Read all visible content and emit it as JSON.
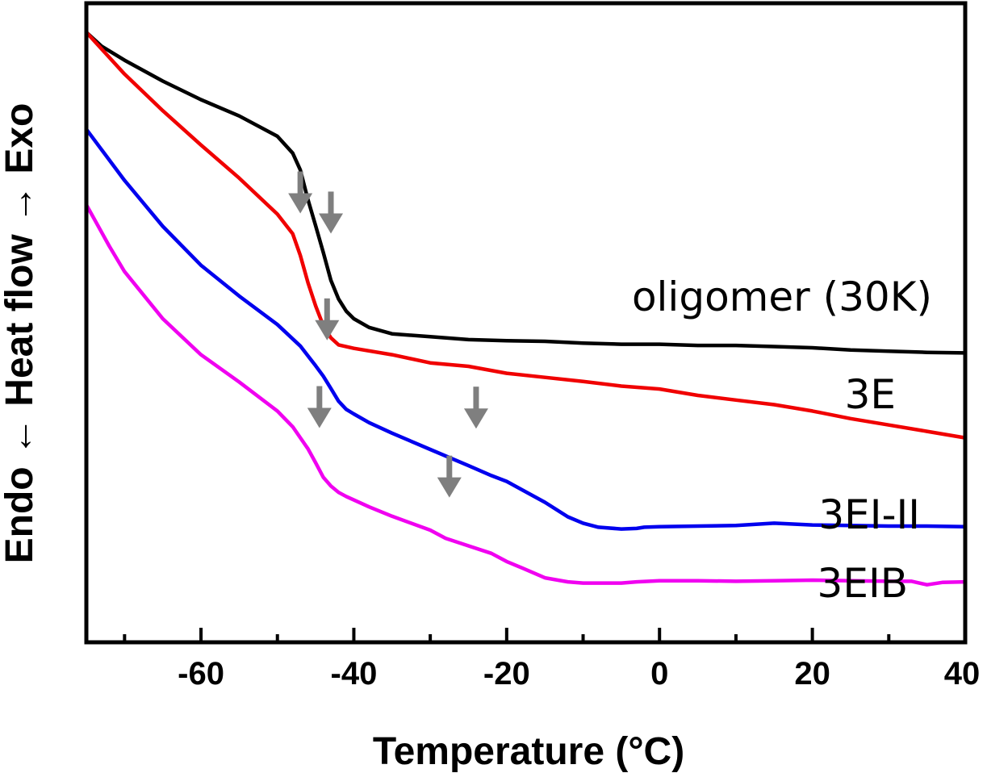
{
  "chart_data": {
    "type": "line",
    "xlabel": "Temperature (°C)",
    "ylabel": "Endo ← Heat flow → Exo",
    "xlim": [
      -75,
      40
    ],
    "ylim": [
      0,
      100
    ],
    "xticks": [
      -60,
      -40,
      -20,
      0,
      20,
      40
    ],
    "grid": false,
    "legend": "none",
    "series": [
      {
        "name": "oligomer (30K)",
        "color": "#000000",
        "x": [
          -75,
          -73,
          -70,
          -65,
          -60,
          -55,
          -50,
          -48,
          -47,
          -46,
          -45,
          -44,
          -43,
          -42,
          -41,
          -40,
          -38,
          -35,
          -30,
          -25,
          -20,
          -15,
          -10,
          -5,
          0,
          5,
          10,
          15,
          20,
          25,
          30,
          35,
          40
        ],
        "y": [
          100,
          97.6,
          95.2,
          91.6,
          88.4,
          85.6,
          82.1,
          79.2,
          76.3,
          71.2,
          66.7,
          62.1,
          57.3,
          54.1,
          52.0,
          50.7,
          49.2,
          48.1,
          47.6,
          47.1,
          46.9,
          46.8,
          46.5,
          46.3,
          46.3,
          46.1,
          46.1,
          45.9,
          45.7,
          45.3,
          45.1,
          44.9,
          44.8
        ]
      },
      {
        "name": "3E",
        "color": "#f00000",
        "x": [
          -75,
          -70,
          -65,
          -60,
          -55,
          -50,
          -48,
          -47,
          -46,
          -45,
          -44,
          -43,
          -42,
          -40,
          -35,
          -30,
          -25,
          -20,
          -15,
          -10,
          -5,
          0,
          5,
          10,
          15,
          20,
          25,
          30,
          35,
          40
        ],
        "y": [
          100,
          92.8,
          86.5,
          80.6,
          74.9,
          68.7,
          65.3,
          61.6,
          56.9,
          52.9,
          49.5,
          47.4,
          46.2,
          45.6,
          44.5,
          43.1,
          42.5,
          41.3,
          40.6,
          39.9,
          39.1,
          38.6,
          37.5,
          36.7,
          35.9,
          34.8,
          33.5,
          32.4,
          31.3,
          30.2
        ]
      },
      {
        "name": "3EI-II",
        "color": "#0000ee",
        "x": [
          -75,
          -70,
          -65,
          -60,
          -55,
          -50,
          -47,
          -45,
          -44,
          -43,
          -42,
          -41,
          -40,
          -38,
          -35,
          -30,
          -25,
          -22,
          -20,
          -15,
          -12,
          -10,
          -8,
          -5,
          -3,
          -2,
          0,
          5,
          10,
          15,
          20,
          25,
          30,
          35,
          40
        ],
        "y": [
          83.3,
          74.5,
          66.6,
          59.9,
          54.6,
          49.7,
          46.0,
          42.6,
          40.8,
          38.7,
          36.5,
          35.1,
          34.3,
          32.8,
          31.0,
          28.2,
          25.4,
          23.7,
          22.7,
          19.1,
          16.6,
          15.5,
          14.8,
          14.5,
          14.6,
          14.8,
          14.9,
          15.0,
          15.1,
          15.5,
          15.2,
          15.1,
          15.0,
          15.0,
          14.9
        ]
      },
      {
        "name": "3EIB",
        "color": "#f000f0",
        "x": [
          -75,
          -72,
          -70,
          -65,
          -60,
          -55,
          -50,
          -48,
          -46,
          -45,
          -44,
          -43,
          -42,
          -41,
          -40,
          -38,
          -35,
          -30,
          -28,
          -25,
          -22,
          -20,
          -18,
          -15,
          -12,
          -10,
          -5,
          -3,
          0,
          5,
          10,
          15,
          20,
          25,
          30,
          33,
          35,
          37,
          40
        ],
        "y": [
          70.3,
          63.2,
          58.8,
          50.7,
          44.5,
          39.8,
          34.8,
          32.1,
          28.3,
          25.9,
          23.4,
          21.9,
          20.8,
          20.1,
          19.5,
          18.3,
          16.7,
          14.3,
          12.9,
          11.6,
          10.3,
          8.9,
          7.8,
          6.1,
          5.4,
          5.2,
          5.2,
          5.4,
          5.6,
          5.6,
          5.5,
          5.6,
          5.7,
          5.6,
          5.5,
          5.5,
          4.9,
          5.3,
          5.4
        ]
      }
    ],
    "arrows_at_x": [
      -43,
      -47,
      -43.5,
      -44.5,
      -24,
      -27.5
    ],
    "arrow_color": "#7f7f7f"
  }
}
